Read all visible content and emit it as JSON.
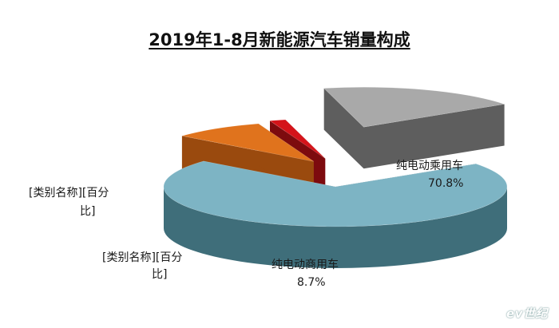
{
  "chart_data": {
    "type": "pie",
    "title": "2019年1-8月新能源汽车销量构成",
    "slices": [
      {
        "name": "纯电动乘用车",
        "label_value": "70.8%",
        "value": 70.8,
        "color": "#7db4c4",
        "side": "#3f6e7a"
      },
      {
        "name": "纯电动商用车",
        "label_value": "8.7%",
        "value": 8.7,
        "color": "#e0731d",
        "side": "#9a4a0e"
      },
      {
        "name": "",
        "value": 1.5,
        "color": "#d4141a",
        "side": "#7d0b0e"
      },
      {
        "name": "",
        "value": 19.0,
        "color": "#a9a9a9",
        "side": "#5e5e5e"
      }
    ],
    "labels": {
      "slice_a_line1": "纯电动乘用车",
      "slice_a_line2": "70.8%",
      "slice_b_line1": "纯电动商用车",
      "slice_b_line2": "8.7%",
      "placeholder_1_line1": "[类别名称][百分",
      "placeholder_1_line2": "比]",
      "placeholder_2_line1": "[类别名称][百分",
      "placeholder_2_line2": "比]"
    }
  },
  "watermark": "ev世纪"
}
